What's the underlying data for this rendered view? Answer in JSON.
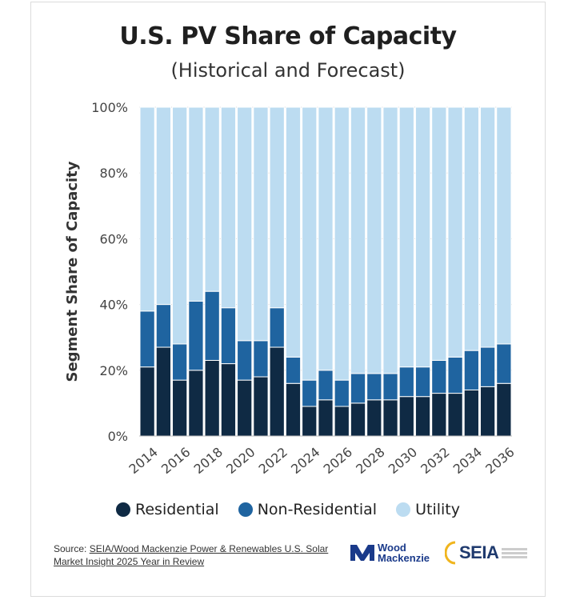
{
  "header": {
    "title": "U.S. PV Share of Capacity",
    "subtitle": "(Historical and Forecast)"
  },
  "chart_data": {
    "type": "bar",
    "stacked": true,
    "title": "U.S. PV Share of Capacity",
    "subtitle": "(Historical and Forecast)",
    "ylabel": "Segment Share of Capacity",
    "xlabel": "",
    "ylim": [
      0,
      100
    ],
    "yticks": [
      "0%",
      "20%",
      "40%",
      "60%",
      "80%",
      "100%"
    ],
    "categories": [
      "2014",
      "2015",
      "2016",
      "2017",
      "2018",
      "2019",
      "2020",
      "2021",
      "2022",
      "2023",
      "2024",
      "2025",
      "2026",
      "2027",
      "2028",
      "2029",
      "2030",
      "2031",
      "2032",
      "2033",
      "2034",
      "2035",
      "2036"
    ],
    "xtick_labels": [
      "2014",
      "2016",
      "2018",
      "2020",
      "2022",
      "2024",
      "2026",
      "2028",
      "2030",
      "2032",
      "2034",
      "2036"
    ],
    "series": [
      {
        "name": "Residential",
        "color": "#0f2a44",
        "values": [
          21,
          27,
          17,
          20,
          23,
          22,
          17,
          18,
          27,
          16,
          9,
          11,
          9,
          10,
          11,
          11,
          12,
          12,
          13,
          13,
          14,
          15,
          16
        ]
      },
      {
        "name": "Non-Residential",
        "color": "#1f64a0",
        "values": [
          17,
          13,
          11,
          21,
          21,
          17,
          12,
          11,
          12,
          8,
          8,
          9,
          8,
          9,
          8,
          8,
          9,
          9,
          10,
          11,
          12,
          12,
          12
        ]
      },
      {
        "name": "Utility",
        "color": "#bcdcf1",
        "values": [
          62,
          60,
          72,
          59,
          56,
          61,
          71,
          71,
          61,
          76,
          83,
          80,
          83,
          81,
          81,
          81,
          79,
          79,
          77,
          76,
          74,
          73,
          72
        ]
      }
    ],
    "legend_position": "bottom",
    "grid": true
  },
  "legend": {
    "items": [
      {
        "label": "Residential",
        "color": "#0f2a44"
      },
      {
        "label": "Non-Residential",
        "color": "#1f64a0"
      },
      {
        "label": "Utility",
        "color": "#bcdcf1"
      }
    ]
  },
  "footer": {
    "source_prefix": "Source: ",
    "source_link": "SEIA/Wood Mackenzie Power & Renewables U.S. Solar Market Insight 2025 Year in Review",
    "logo_wm_line1": "Wood",
    "logo_wm_line2": "Mackenzie",
    "logo_seia": "SEIA"
  }
}
